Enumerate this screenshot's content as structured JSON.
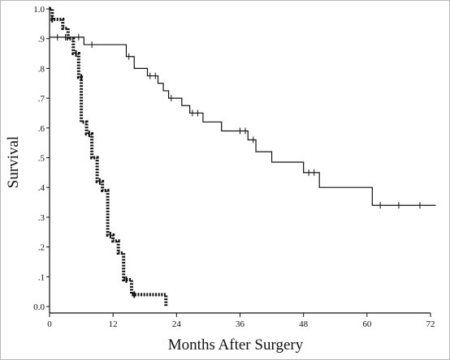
{
  "chart_data": {
    "type": "line",
    "title": "",
    "xlabel": "Months After Surgery",
    "ylabel": "Survival",
    "xlim": [
      0,
      72
    ],
    "ylim": [
      0,
      1
    ],
    "x_ticks": [
      {
        "value": 0,
        "label": "0"
      },
      {
        "value": 12,
        "label": "12"
      },
      {
        "value": 24,
        "label": "24"
      },
      {
        "value": 36,
        "label": "36"
      },
      {
        "value": 48,
        "label": "48"
      },
      {
        "value": 60,
        "label": "60"
      },
      {
        "value": 72,
        "label": "72"
      }
    ],
    "y_ticks": [
      {
        "value": 0.0,
        "label": "0.0"
      },
      {
        "value": 0.1,
        "label": ".1"
      },
      {
        "value": 0.2,
        "label": ".2"
      },
      {
        "value": 0.3,
        "label": ".3"
      },
      {
        "value": 0.4,
        "label": ".4"
      },
      {
        "value": 0.5,
        "label": ".5"
      },
      {
        "value": 0.6,
        "label": ".6"
      },
      {
        "value": 0.7,
        "label": ".7"
      },
      {
        "value": 0.8,
        "label": ".8"
      },
      {
        "value": 0.9,
        "label": ".9"
      },
      {
        "value": 1.0,
        "label": "1.0"
      }
    ],
    "grid": false,
    "series": [
      {
        "style": "solid",
        "color": "#111111",
        "steps": [
          {
            "x": 0,
            "y": 0.905
          },
          {
            "x": 6.5,
            "y": 0.88
          },
          {
            "x": 14.5,
            "y": 0.84
          },
          {
            "x": 16,
            "y": 0.8
          },
          {
            "x": 18.5,
            "y": 0.775
          },
          {
            "x": 20.5,
            "y": 0.75
          },
          {
            "x": 21.5,
            "y": 0.725
          },
          {
            "x": 22.5,
            "y": 0.7
          },
          {
            "x": 25,
            "y": 0.675
          },
          {
            "x": 26.5,
            "y": 0.65
          },
          {
            "x": 29,
            "y": 0.62
          },
          {
            "x": 32.5,
            "y": 0.59
          },
          {
            "x": 37.5,
            "y": 0.56
          },
          {
            "x": 39,
            "y": 0.52
          },
          {
            "x": 42,
            "y": 0.485
          },
          {
            "x": 48,
            "y": 0.45
          },
          {
            "x": 51,
            "y": 0.4
          },
          {
            "x": 61,
            "y": 0.34
          },
          {
            "x": 73,
            "y": 0.34
          }
        ],
        "censored": [
          {
            "x": 1.5,
            "y": 0.905
          },
          {
            "x": 3,
            "y": 0.905
          },
          {
            "x": 5.5,
            "y": 0.905
          },
          {
            "x": 8,
            "y": 0.88
          },
          {
            "x": 15,
            "y": 0.84
          },
          {
            "x": 19,
            "y": 0.775
          },
          {
            "x": 20,
            "y": 0.775
          },
          {
            "x": 23,
            "y": 0.7
          },
          {
            "x": 27,
            "y": 0.65
          },
          {
            "x": 28,
            "y": 0.65
          },
          {
            "x": 36,
            "y": 0.59
          },
          {
            "x": 37,
            "y": 0.59
          },
          {
            "x": 38.5,
            "y": 0.56
          },
          {
            "x": 49,
            "y": 0.45
          },
          {
            "x": 50,
            "y": 0.45
          },
          {
            "x": 62.5,
            "y": 0.34
          },
          {
            "x": 66,
            "y": 0.34
          },
          {
            "x": 70,
            "y": 0.34
          }
        ]
      },
      {
        "style": "dotted",
        "color": "#111111",
        "steps": [
          {
            "x": 0,
            "y": 1.0
          },
          {
            "x": 0.5,
            "y": 0.965
          },
          {
            "x": 2.5,
            "y": 0.935
          },
          {
            "x": 3.5,
            "y": 0.9
          },
          {
            "x": 4.5,
            "y": 0.85
          },
          {
            "x": 5.5,
            "y": 0.77
          },
          {
            "x": 6,
            "y": 0.62
          },
          {
            "x": 7,
            "y": 0.58
          },
          {
            "x": 8,
            "y": 0.5
          },
          {
            "x": 9,
            "y": 0.42
          },
          {
            "x": 10,
            "y": 0.39
          },
          {
            "x": 11,
            "y": 0.24
          },
          {
            "x": 12,
            "y": 0.22
          },
          {
            "x": 13,
            "y": 0.18
          },
          {
            "x": 14,
            "y": 0.09
          },
          {
            "x": 15.5,
            "y": 0.04
          },
          {
            "x": 22,
            "y": 0.0
          }
        ],
        "censored": [
          {
            "x": 0.5,
            "y": 0.965
          },
          {
            "x": 5,
            "y": 0.85
          },
          {
            "x": 6,
            "y": 0.77
          },
          {
            "x": 7.5,
            "y": 0.58
          },
          {
            "x": 9.5,
            "y": 0.42
          },
          {
            "x": 11.5,
            "y": 0.24
          },
          {
            "x": 14.5,
            "y": 0.09
          },
          {
            "x": 16,
            "y": 0.04
          }
        ]
      }
    ]
  }
}
